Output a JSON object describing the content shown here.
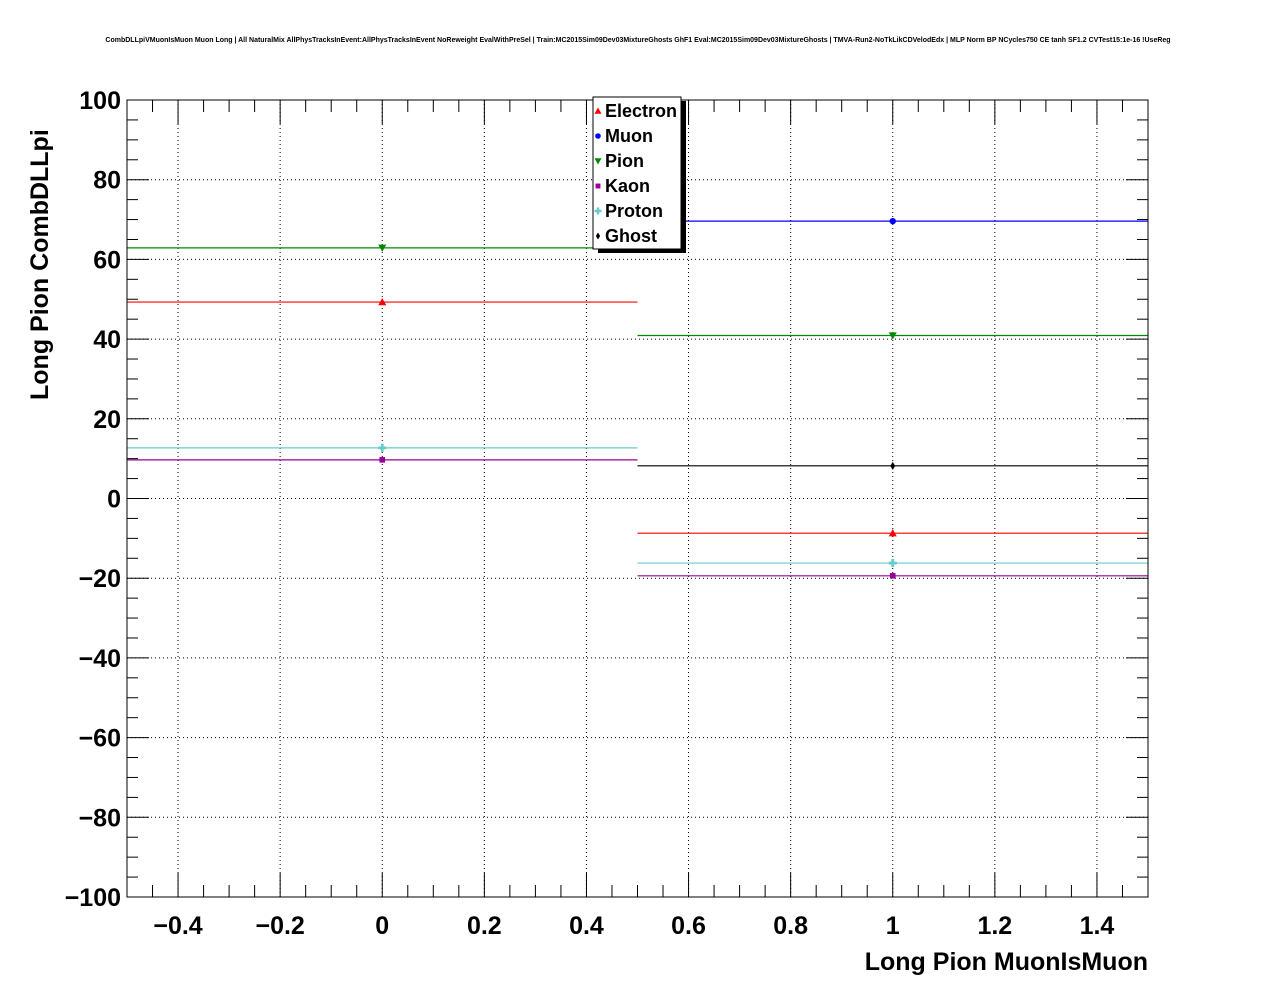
{
  "chart_data": {
    "type": "scatter",
    "title": "CombDLLpiVMuonIsMuon Muon Long | All NaturalMix AllPhysTracksInEvent:AllPhysTracksInEvent NoReweight EvalWithPreSel | Train:MC2015Sim09Dev03MixtureGhosts GhF1 Eval:MC2015Sim09Dev03MixtureGhosts | TMVA-Run2-NoTkLikCDVelodEdx | MLP Norm BP NCycles750 CE tanh SF1.2 CVTest15:1e-16 !UseReg",
    "xlabel": "Long Pion MuonIsMuon",
    "ylabel": "Long Pion CombDLLpi",
    "xlim": [
      -0.5,
      1.5
    ],
    "ylim": [
      -100,
      100
    ],
    "xticks": [
      -0.4,
      -0.2,
      0,
      0.2,
      0.4,
      0.6,
      0.8,
      1,
      1.2,
      1.4
    ],
    "xtick_labels": [
      "−0.4",
      "−0.2",
      "0",
      "0.2",
      "0.4",
      "0.6",
      "0.8",
      "1",
      "1.2",
      "1.4"
    ],
    "yticks": [
      -100,
      -80,
      -60,
      -40,
      -20,
      0,
      20,
      40,
      60,
      80,
      100
    ],
    "ytick_labels": [
      "−100",
      "−80",
      "−60",
      "−40",
      "−20",
      "0",
      "20",
      "40",
      "60",
      "80",
      "100"
    ],
    "grid": true,
    "legend_position": "top-center",
    "bins": [
      [
        -0.5,
        0.5
      ],
      [
        0.5,
        1.5
      ]
    ],
    "series": [
      {
        "name": "Electron",
        "color": "#ff0000",
        "marker": "triangle-up",
        "x": [
          0,
          1
        ],
        "y": [
          49.3,
          -8.7
        ]
      },
      {
        "name": "Muon",
        "color": "#0000ff",
        "marker": "circle",
        "x": [
          1
        ],
        "y": [
          69.6
        ]
      },
      {
        "name": "Pion",
        "color": "#008800",
        "marker": "triangle-down",
        "x": [
          0,
          1
        ],
        "y": [
          62.9,
          40.9
        ]
      },
      {
        "name": "Kaon",
        "color": "#990099",
        "marker": "square",
        "x": [
          0,
          1
        ],
        "y": [
          9.7,
          -19.4
        ]
      },
      {
        "name": "Proton",
        "color": "#66cccc",
        "marker": "cross",
        "x": [
          0,
          1
        ],
        "y": [
          12.7,
          -16.2
        ]
      },
      {
        "name": "Ghost",
        "color": "#000000",
        "marker": "diamond",
        "x": [
          1
        ],
        "y": [
          8.2
        ]
      }
    ]
  }
}
